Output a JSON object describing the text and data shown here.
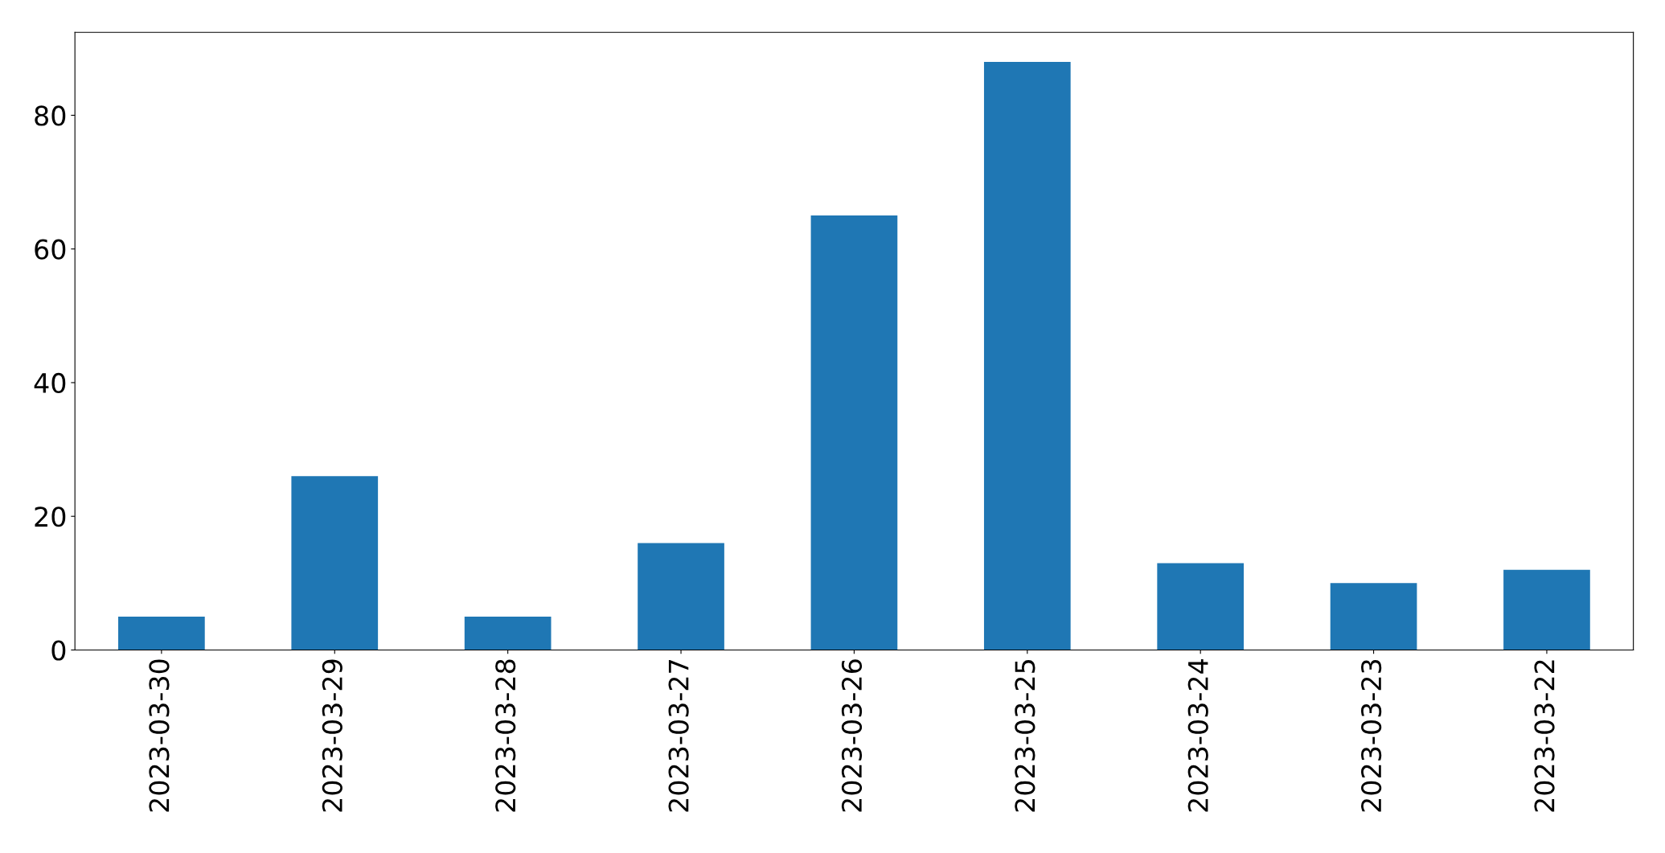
{
  "chart_data": {
    "type": "bar",
    "categories": [
      "2023-03-30",
      "2023-03-29",
      "2023-03-28",
      "2023-03-27",
      "2023-03-26",
      "2023-03-25",
      "2023-03-24",
      "2023-03-23",
      "2023-03-22"
    ],
    "values": [
      5,
      26,
      5,
      16,
      65,
      88,
      13,
      10,
      12
    ],
    "color": "#1f77b4",
    "ylim": [
      0,
      92.4
    ],
    "yticks": [
      0,
      20,
      40,
      60,
      80
    ],
    "grid": false
  }
}
